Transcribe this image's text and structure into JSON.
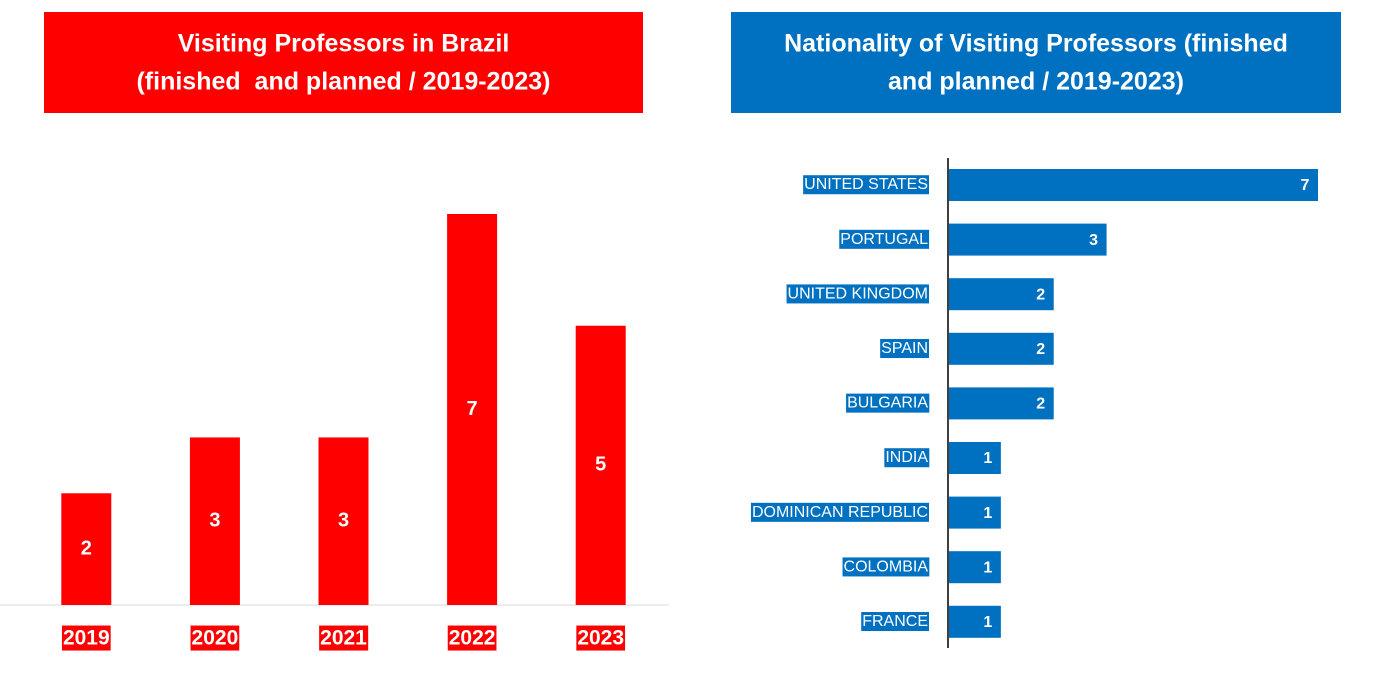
{
  "chart_data": [
    {
      "type": "bar",
      "title": [
        "Visiting Professors in Brazil",
        "(finished  and planned / 2019-2023)"
      ],
      "categories": [
        "2019",
        "2020",
        "2021",
        "2022",
        "2023"
      ],
      "values": [
        2,
        3,
        3,
        7,
        5
      ],
      "color": "#ff0000",
      "ylim": [
        0,
        7
      ]
    },
    {
      "type": "hbar",
      "title": [
        "Nationality of Visiting Professors (finished",
        "and planned / 2019-2023)"
      ],
      "categories": [
        "UNITED STATES",
        "PORTUGAL",
        "UNITED KINGDOM",
        "SPAIN",
        "BULGARIA",
        "INDIA",
        "DOMINICAN REPUBLIC",
        "COLOMBIA",
        "FRANCE"
      ],
      "values": [
        7,
        3,
        2,
        2,
        2,
        1,
        1,
        1,
        1
      ],
      "color": "#0070c0",
      "xlim": [
        0,
        7
      ]
    }
  ]
}
